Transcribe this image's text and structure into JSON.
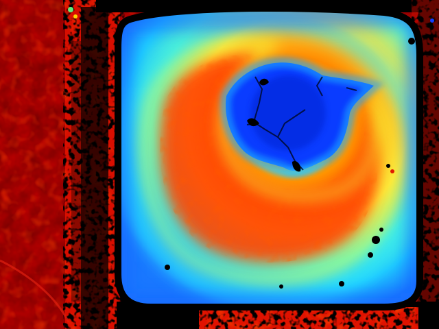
{
  "image": {
    "kind": "depth-map-false-color",
    "colormap": "jet",
    "colors": {
      "near_red": "#ff1a00",
      "dark_red": "#8a0000",
      "orange": "#ff7a00",
      "yellow": "#f4ff3a",
      "cyan": "#2fe4ff",
      "light_blue": "#1aa8ff",
      "blue": "#0a3cff",
      "dark_blue": "#0a20d8",
      "invalid_black": "#000000"
    }
  }
}
